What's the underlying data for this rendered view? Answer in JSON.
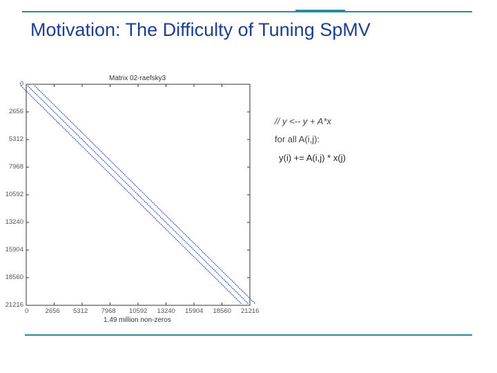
{
  "slide": {
    "title": "Motivation: The Difficulty of Tuning SpMV"
  },
  "plot": {
    "title": "Matrix 02-raefsky3",
    "xlabel": "1.49 million non-zeros",
    "y_ticks": [
      "0",
      "2656",
      "5312",
      "7968",
      "10592",
      "13240",
      "15904",
      "18560",
      "21216"
    ],
    "x_ticks": [
      "0",
      "2656",
      "5312",
      "7968",
      "10592",
      "13240",
      "15904",
      "18560",
      "21216"
    ],
    "matrix_size": 21216,
    "band_color": "#1f3fbf"
  },
  "code": {
    "line1": "// y <-- y + A*x",
    "line2": "for all A(i,j):",
    "line3": "y(i) += A(i,j) * x(j)"
  }
}
